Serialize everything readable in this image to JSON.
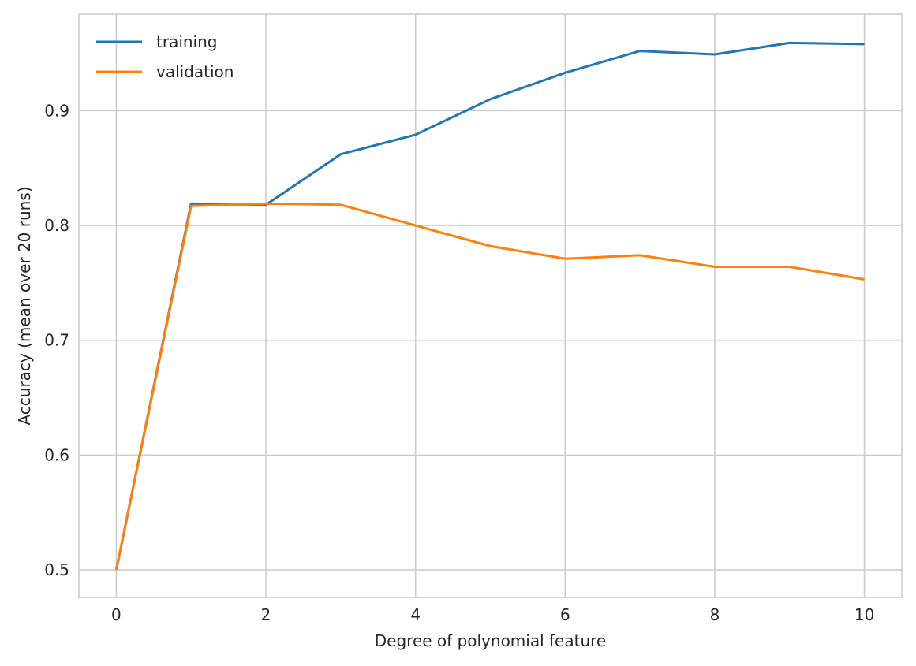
{
  "chart_data": {
    "type": "line",
    "title": "",
    "xlabel": "Degree of polynomial feature",
    "ylabel": "Accuracy (mean over 20 runs)",
    "xlim": [
      -0.5,
      10.5
    ],
    "ylim": [
      0.476,
      0.984
    ],
    "xticks": [
      0,
      2,
      4,
      6,
      8,
      10
    ],
    "yticks": [
      0.5,
      0.6,
      0.7,
      0.8,
      0.9
    ],
    "ytick_labels": [
      "0.5",
      "0.6",
      "0.7",
      "0.8",
      "0.9"
    ],
    "grid": true,
    "legend_position": "top-left",
    "x": [
      0,
      1,
      2,
      3,
      4,
      5,
      6,
      7,
      8,
      9,
      10
    ],
    "series": [
      {
        "name": "training",
        "color": "#1f77b4",
        "values": [
          0.5,
          0.819,
          0.818,
          0.862,
          0.879,
          0.91,
          0.933,
          0.952,
          0.949,
          0.959,
          0.958
        ]
      },
      {
        "name": "validation",
        "color": "#ff7f0e",
        "values": [
          0.5,
          0.817,
          0.819,
          0.818,
          0.8,
          0.782,
          0.771,
          0.774,
          0.764,
          0.764,
          0.753
        ]
      }
    ]
  },
  "colors": {
    "grid": "#cccccc",
    "axes_border": "#cccccc",
    "text": "#262626"
  }
}
